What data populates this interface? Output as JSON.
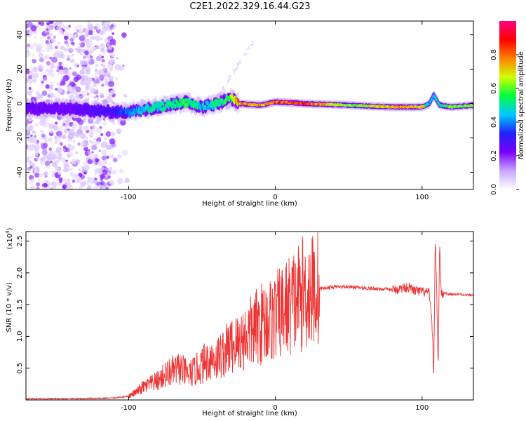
{
  "title": "C2E1.2022.329.16.44.G23",
  "colors": {
    "snr_line": "#ee3333",
    "colormap": [
      "#ffffff",
      "#c6a6ff",
      "#7a00ff",
      "#2020ff",
      "#00c8ff",
      "#00ff40",
      "#d0ff00",
      "#ff8000",
      "#ff0000",
      "#ff0080"
    ]
  },
  "chart_data": [
    {
      "type": "heatmap",
      "name": "spectrogram",
      "xlabel": "Height of straight line (km)",
      "ylabel": "Frequency (Hz)",
      "xlim": [
        -170,
        135
      ],
      "ylim": [
        -50,
        48
      ],
      "xticks": [
        -100,
        0,
        100
      ],
      "xtick_labels": [
        "-100",
        "0",
        "100"
      ],
      "yticks": [
        -40,
        -20,
        0,
        20,
        40
      ],
      "ytick_labels": [
        "-40",
        "-20",
        "0",
        "20",
        "40"
      ],
      "colorbar": {
        "label": "Normalized spectral amplitude",
        "range": [
          0,
          1
        ],
        "ticks": [
          0.0,
          0.2,
          0.4,
          0.6,
          0.8
        ],
        "tick_labels": [
          "0.0",
          "0.2",
          "0.4",
          "0.6",
          "0.8"
        ]
      },
      "ridge": {
        "height_km": [
          -170,
          -140,
          -110,
          -100,
          -80,
          -60,
          -50,
          -40,
          -30,
          -25,
          -10,
          0,
          20,
          50,
          80,
          100,
          105,
          108,
          112,
          120,
          135
        ],
        "frequency_hz": [
          -3,
          -3,
          -5,
          -5,
          -2,
          1,
          -2,
          0,
          3,
          0,
          -1,
          1,
          0,
          -1,
          -2,
          -2,
          0,
          5,
          -1,
          -2,
          -1
        ],
        "amplitude": [
          0.25,
          0.25,
          0.3,
          0.4,
          0.5,
          0.55,
          0.45,
          0.5,
          0.6,
          0.8,
          0.75,
          0.85,
          0.85,
          0.6,
          0.75,
          0.75,
          0.45,
          0.45,
          0.5,
          0.65,
          0.6
        ]
      },
      "noise_region_km": [
        -170,
        -110
      ],
      "grid": false
    },
    {
      "type": "line",
      "name": "snr",
      "xlabel": "Height of straight line (km)",
      "ylabel": "SNR (10 * v/v)",
      "scale_label": "(x10",
      "scale_exp": "4",
      "scale_close": ")",
      "xlim": [
        -170,
        135
      ],
      "ylim": [
        0,
        2.65
      ],
      "xticks": [
        -100,
        0,
        100
      ],
      "xtick_labels": [
        "-100",
        "0",
        "100"
      ],
      "yticks": [
        0.5,
        1.0,
        1.5,
        2.0,
        2.5
      ],
      "ytick_labels": [
        "0.5",
        "1.0",
        "1.5",
        "2.0",
        "2.5"
      ],
      "series": [
        {
          "x": [
            -170,
            -150,
            -130,
            -110,
            -100,
            -95,
            -90,
            -85,
            -80,
            -75,
            -70,
            -65,
            -60,
            -55,
            -50,
            -45,
            -40,
            -35,
            -30,
            -25,
            -20,
            -15,
            -10,
            -5,
            0,
            5,
            10,
            15,
            20,
            25,
            30,
            40,
            50,
            60,
            70,
            80,
            85,
            90,
            95,
            100,
            105,
            107,
            108,
            109,
            110,
            111,
            112,
            113,
            115,
            120,
            125,
            130,
            135
          ],
          "y": [
            0.02,
            0.02,
            0.02,
            0.03,
            0.06,
            0.12,
            0.2,
            0.25,
            0.3,
            0.4,
            0.45,
            0.5,
            0.4,
            0.45,
            0.55,
            0.65,
            0.65,
            0.75,
            0.85,
            0.9,
            1.0,
            1.1,
            1.2,
            1.25,
            1.3,
            1.4,
            1.5,
            1.6,
            1.7,
            1.73,
            1.75,
            1.78,
            1.78,
            1.76,
            1.75,
            1.73,
            1.75,
            1.78,
            1.72,
            1.7,
            1.68,
            1.1,
            0.4,
            2.6,
            1.7,
            0.5,
            2.5,
            1.65,
            1.68,
            1.66,
            1.67,
            1.65,
            1.65
          ]
        }
      ],
      "grid": false
    }
  ]
}
